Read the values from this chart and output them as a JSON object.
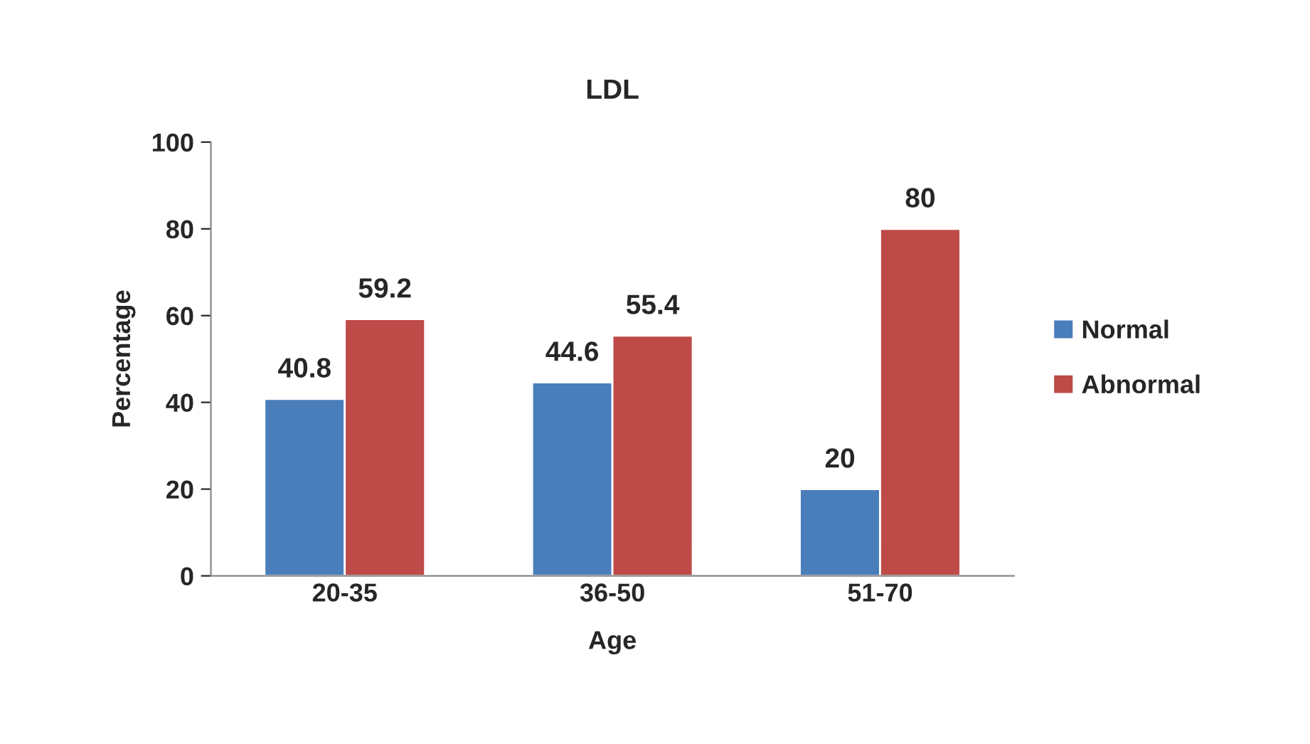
{
  "chart_data": {
    "type": "bar",
    "title": "LDL",
    "xlabel": "Age",
    "ylabel": "Percentage",
    "categories": [
      "20-35",
      "36-50",
      "51-70"
    ],
    "series": [
      {
        "name": "Normal",
        "color": "#4a7ebb",
        "values": [
          40.8,
          44.6,
          20
        ]
      },
      {
        "name": "Abnormal",
        "color": "#be4b48",
        "values": [
          59.2,
          55.4,
          80
        ]
      }
    ],
    "ylim": [
      0,
      100
    ],
    "yticks": [
      0,
      20,
      40,
      60,
      80,
      100
    ],
    "grid": false,
    "legend": "right",
    "data_labels": true
  }
}
